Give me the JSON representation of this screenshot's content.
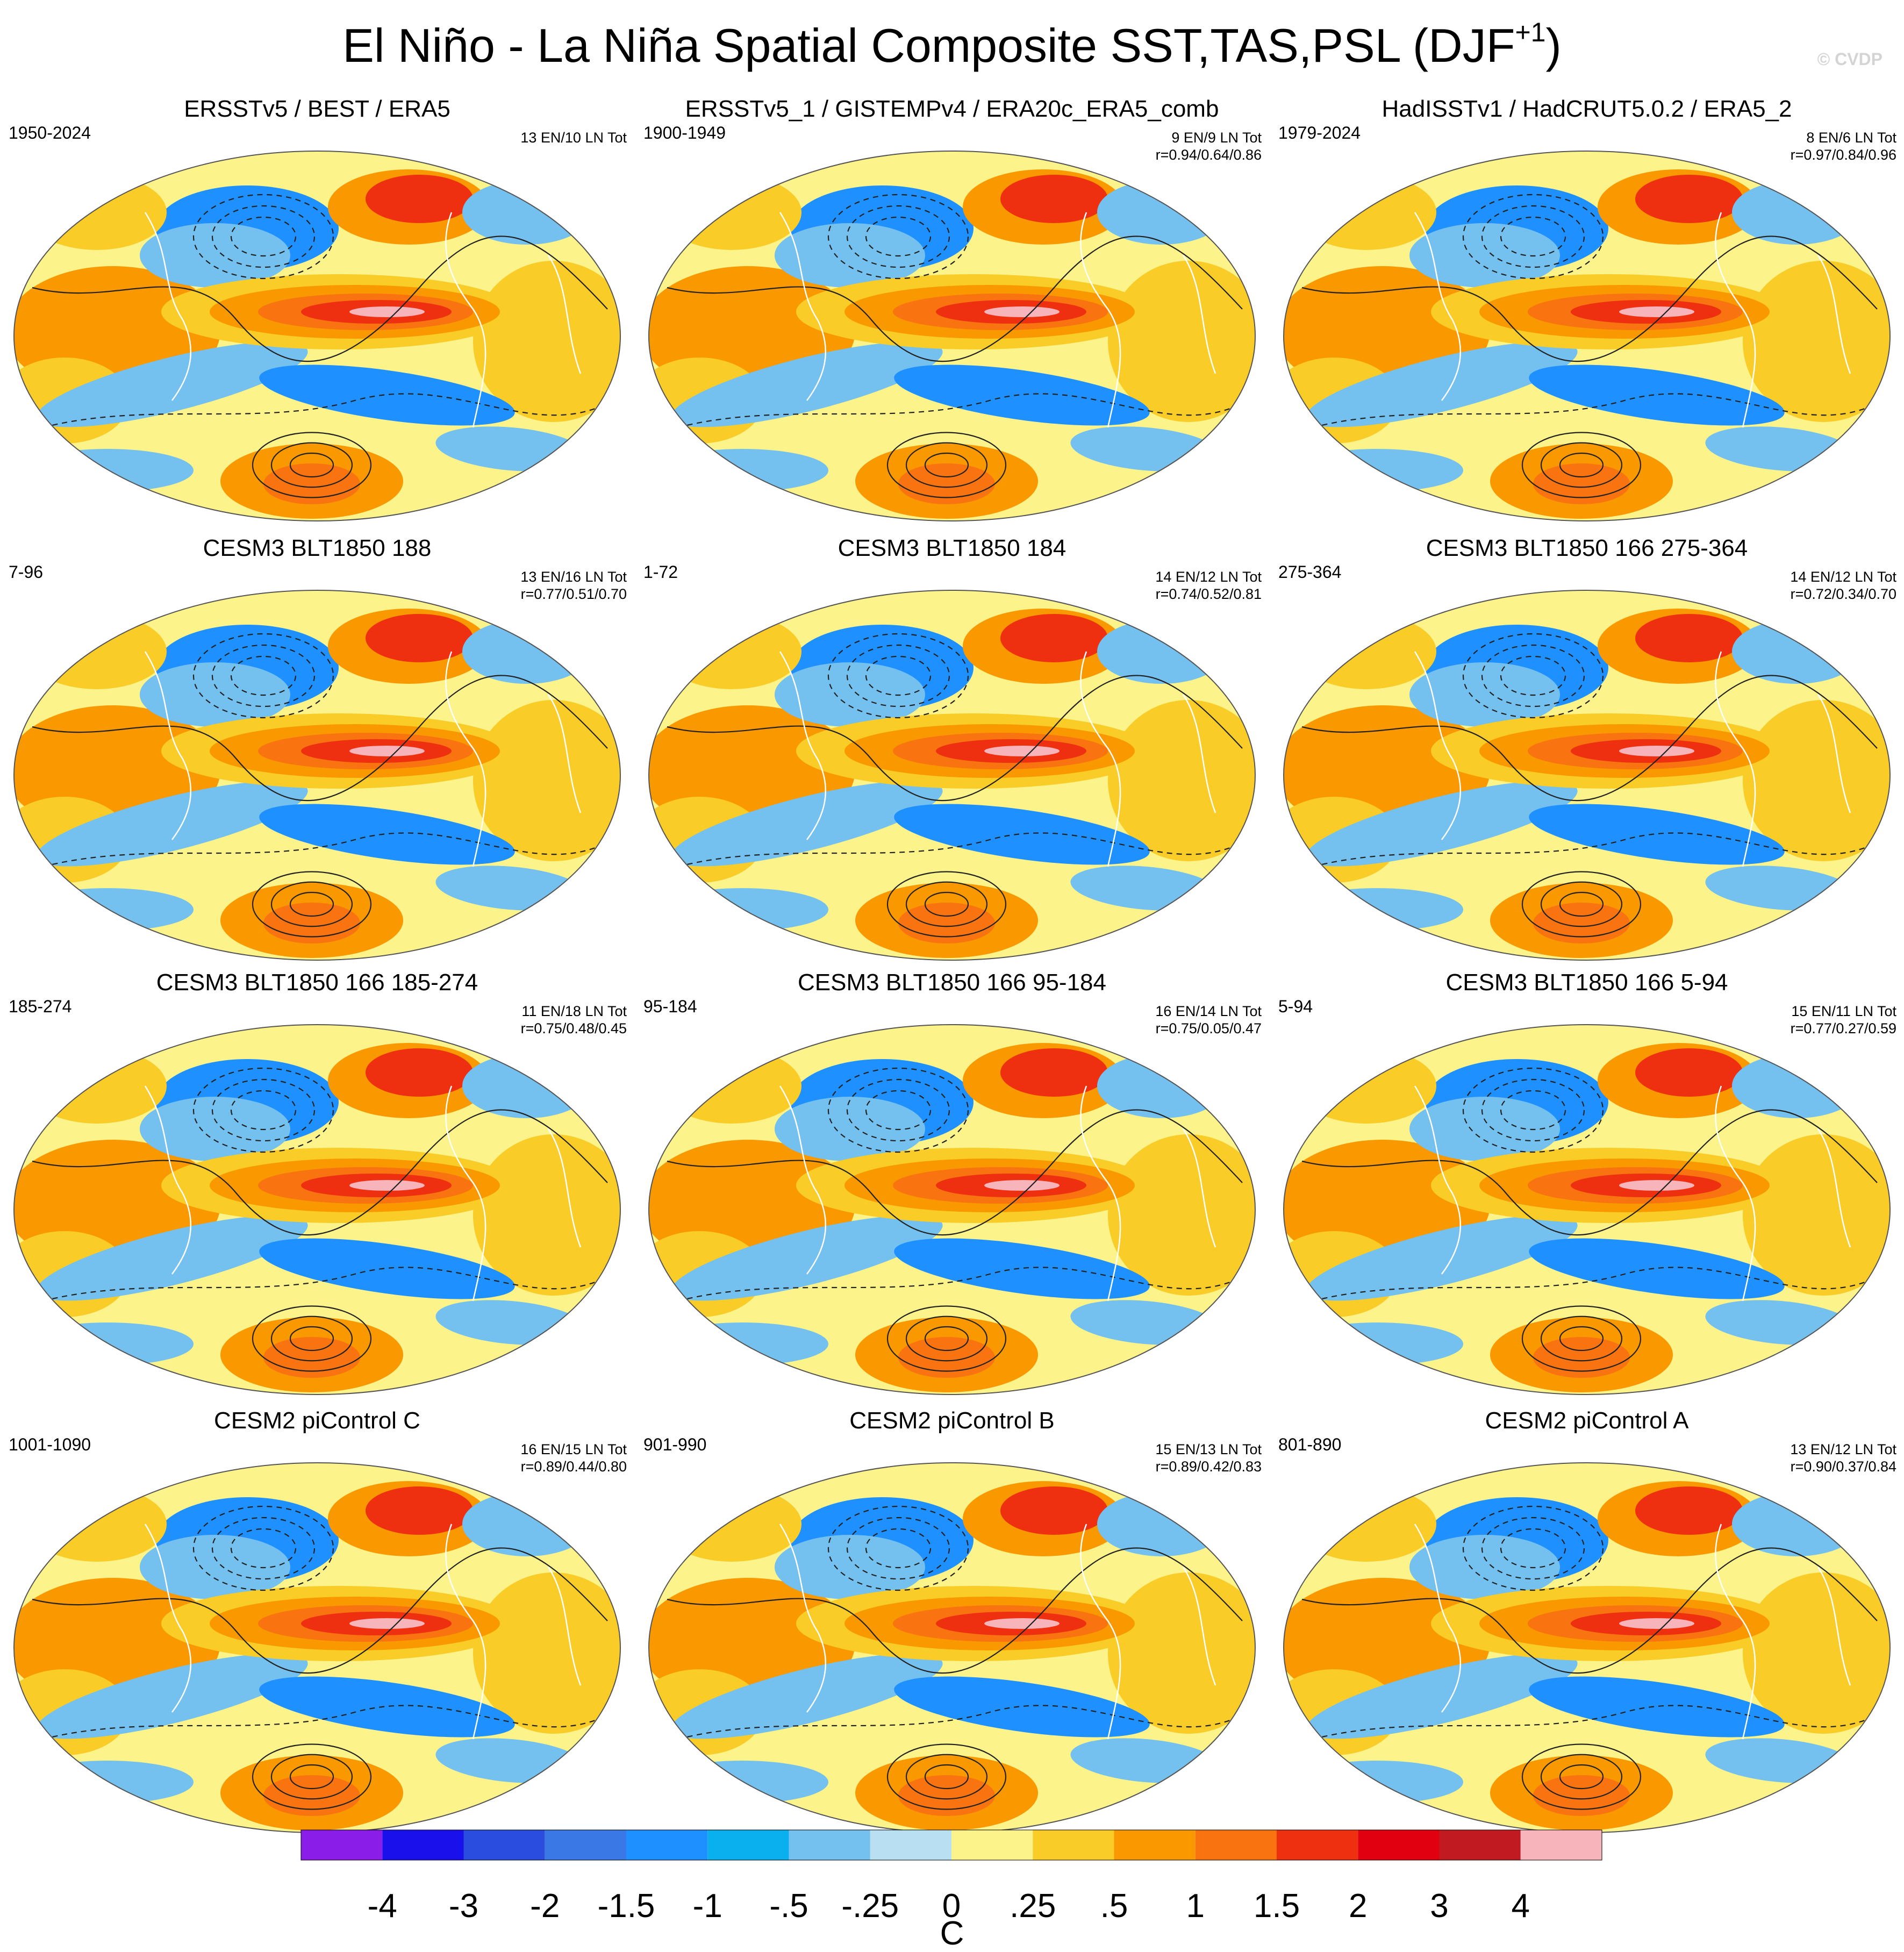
{
  "main_title": "El Niño - La Niña Spatial Composite SST,TAS,PSL (DJF",
  "main_title_sup": "+1",
  "main_title_close": ")",
  "watermark": "© CVDP",
  "chart_data": {
    "type": "map-panels",
    "colorbar": {
      "unit": "C",
      "tick_labels": [
        "-4",
        "-3",
        "-2",
        "-1.5",
        "-1",
        "-.5",
        "-.25",
        "0",
        ".25",
        ".5",
        "1",
        "1.5",
        "2",
        "3",
        "4"
      ],
      "colors": [
        "#8a1ee8",
        "#1a10ec",
        "#2a4de0",
        "#3a78e6",
        "#1e90ff",
        "#0ab0ee",
        "#74c0ee",
        "#b8dff2",
        "#fcf38a",
        "#f9cc28",
        "#fa9800",
        "#f97410",
        "#ee3010",
        "#e0000f",
        "#c11a20",
        "#f7b4ba"
      ]
    },
    "panels": [
      {
        "title": "ERSSTv5 / BEST / ERA5",
        "period": "1950-2024",
        "counts": "13 EN/10 LN Tot",
        "r": ""
      },
      {
        "title": "ERSSTv5_1 / GISTEMPv4 / ERA20c_ERA5_comb",
        "period": "1900-1949",
        "counts": "9 EN/9 LN Tot",
        "r": "r=0.94/0.64/0.86"
      },
      {
        "title": "HadISSTv1 / HadCRUT5.0.2 / ERA5_2",
        "period": "1979-2024",
        "counts": "8 EN/6 LN Tot",
        "r": "r=0.97/0.84/0.96"
      },
      {
        "title": "CESM3 BLT1850 188",
        "period": "7-96",
        "counts": "13 EN/16 LN Tot",
        "r": "r=0.77/0.51/0.70"
      },
      {
        "title": "CESM3 BLT1850 184",
        "period": "1-72",
        "counts": "14 EN/12 LN Tot",
        "r": "r=0.74/0.52/0.81"
      },
      {
        "title": "CESM3 BLT1850 166 275-364",
        "period": "275-364",
        "counts": "14 EN/12 LN Tot",
        "r": "r=0.72/0.34/0.70"
      },
      {
        "title": "CESM3 BLT1850 166 185-274",
        "period": "185-274",
        "counts": "11 EN/18 LN Tot",
        "r": "r=0.75/0.48/0.45"
      },
      {
        "title": "CESM3 BLT1850 166 95-184",
        "period": "95-184",
        "counts": "16 EN/14 LN Tot",
        "r": "r=0.75/0.05/0.47"
      },
      {
        "title": "CESM3 BLT1850 166 5-94",
        "period": "5-94",
        "counts": "15 EN/11 LN Tot",
        "r": "r=0.77/0.27/0.59"
      },
      {
        "title": "CESM2 piControl C",
        "period": "1001-1090",
        "counts": "16 EN/15 LN Tot",
        "r": "r=0.89/0.44/0.80"
      },
      {
        "title": "CESM2 piControl B",
        "period": "901-990",
        "counts": "15 EN/13 LN Tot",
        "r": "r=0.89/0.42/0.83"
      },
      {
        "title": "CESM2 piControl A",
        "period": "801-890",
        "counts": "13 EN/12 LN Tot",
        "r": "r=0.90/0.37/0.84"
      }
    ]
  }
}
